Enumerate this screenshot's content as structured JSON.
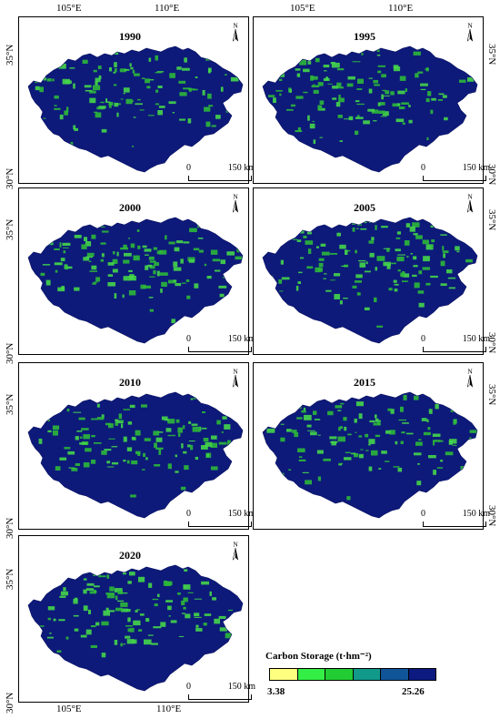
{
  "panels": [
    {
      "year": "1990"
    },
    {
      "year": "1995"
    },
    {
      "year": "2000"
    },
    {
      "year": "2005"
    },
    {
      "year": "2010"
    },
    {
      "year": "2015"
    },
    {
      "year": "2020"
    }
  ],
  "axes": {
    "lon_labels": [
      "105°E",
      "110°E"
    ],
    "lat_labels": [
      "35°N",
      "30°N"
    ]
  },
  "north_arrow_label": "N",
  "scale_bar": {
    "start": "0",
    "end": "150 km"
  },
  "legend": {
    "title": "Carbon Storage (t·hm⁻²)",
    "min": "3.38",
    "max": "25.26",
    "colors": [
      "#ffff80",
      "#33ee44",
      "#22cc33",
      "#11998a",
      "#115599",
      "#0d1a80"
    ]
  },
  "map_colors": {
    "dark": "#0d1a7a",
    "green": "#2cb83a",
    "light_green": "#45d64a"
  }
}
